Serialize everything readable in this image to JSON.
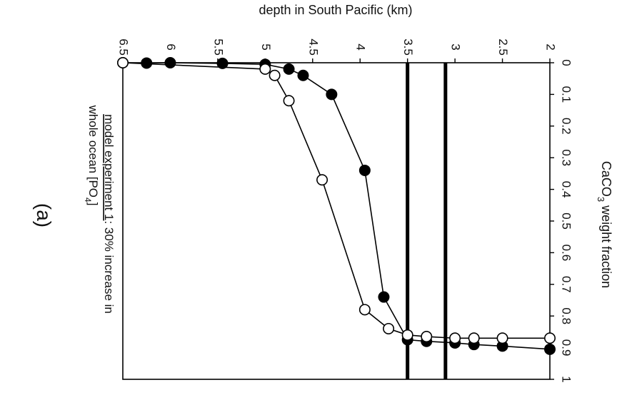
{
  "chart_data": {
    "type": "line",
    "orientation": "rotated-90-clockwise",
    "xlabel": "depth in South Pacific (km)",
    "ylabel_main": "CaCO",
    "ylabel_sub": "3",
    "ylabel_rest": " weight fraction",
    "x_ticks": [
      "2",
      "2.5",
      "3",
      "3.5",
      "4",
      "4.5",
      "5",
      "5.5",
      "6",
      "6.5"
    ],
    "y_ticks": [
      "0",
      "0.1",
      "0.2",
      "0.3",
      "0.4",
      "0.5",
      "0.6",
      "0.7",
      "0.8",
      "0.9",
      "1"
    ],
    "xlim": [
      2,
      6.5
    ],
    "ylim": [
      0,
      1
    ],
    "grid": false,
    "reference_lines": [
      3.1,
      3.5
    ],
    "series": [
      {
        "marker": "filled",
        "x": [
          2.0,
          2.5,
          2.8,
          3.0,
          3.3,
          3.5,
          3.75,
          3.95,
          4.3,
          4.6,
          4.75,
          5.0,
          5.45,
          6.25,
          6.0,
          6.5
        ],
        "y": [
          0.905,
          0.895,
          0.89,
          0.885,
          0.88,
          0.875,
          0.74,
          0.34,
          0.1,
          0.04,
          0.02,
          0.005,
          0.002,
          0.001,
          0.0,
          0.0
        ]
      },
      {
        "marker": "open",
        "x": [
          2.0,
          2.5,
          2.8,
          3.0,
          3.3,
          3.5,
          3.7,
          3.95,
          4.4,
          4.75,
          4.9,
          5.0,
          6.5
        ],
        "y": [
          0.87,
          0.87,
          0.87,
          0.87,
          0.865,
          0.86,
          0.84,
          0.78,
          0.37,
          0.12,
          0.04,
          0.02,
          0.0
        ]
      }
    ],
    "caption_prefix": "model experiment 1",
    "caption_line1_rest": ": 30% increase in",
    "caption_line2": "whole ocean [PO",
    "caption_line2_sub": "4",
    "caption_line2_end": "]",
    "panel_label": "(a)"
  }
}
